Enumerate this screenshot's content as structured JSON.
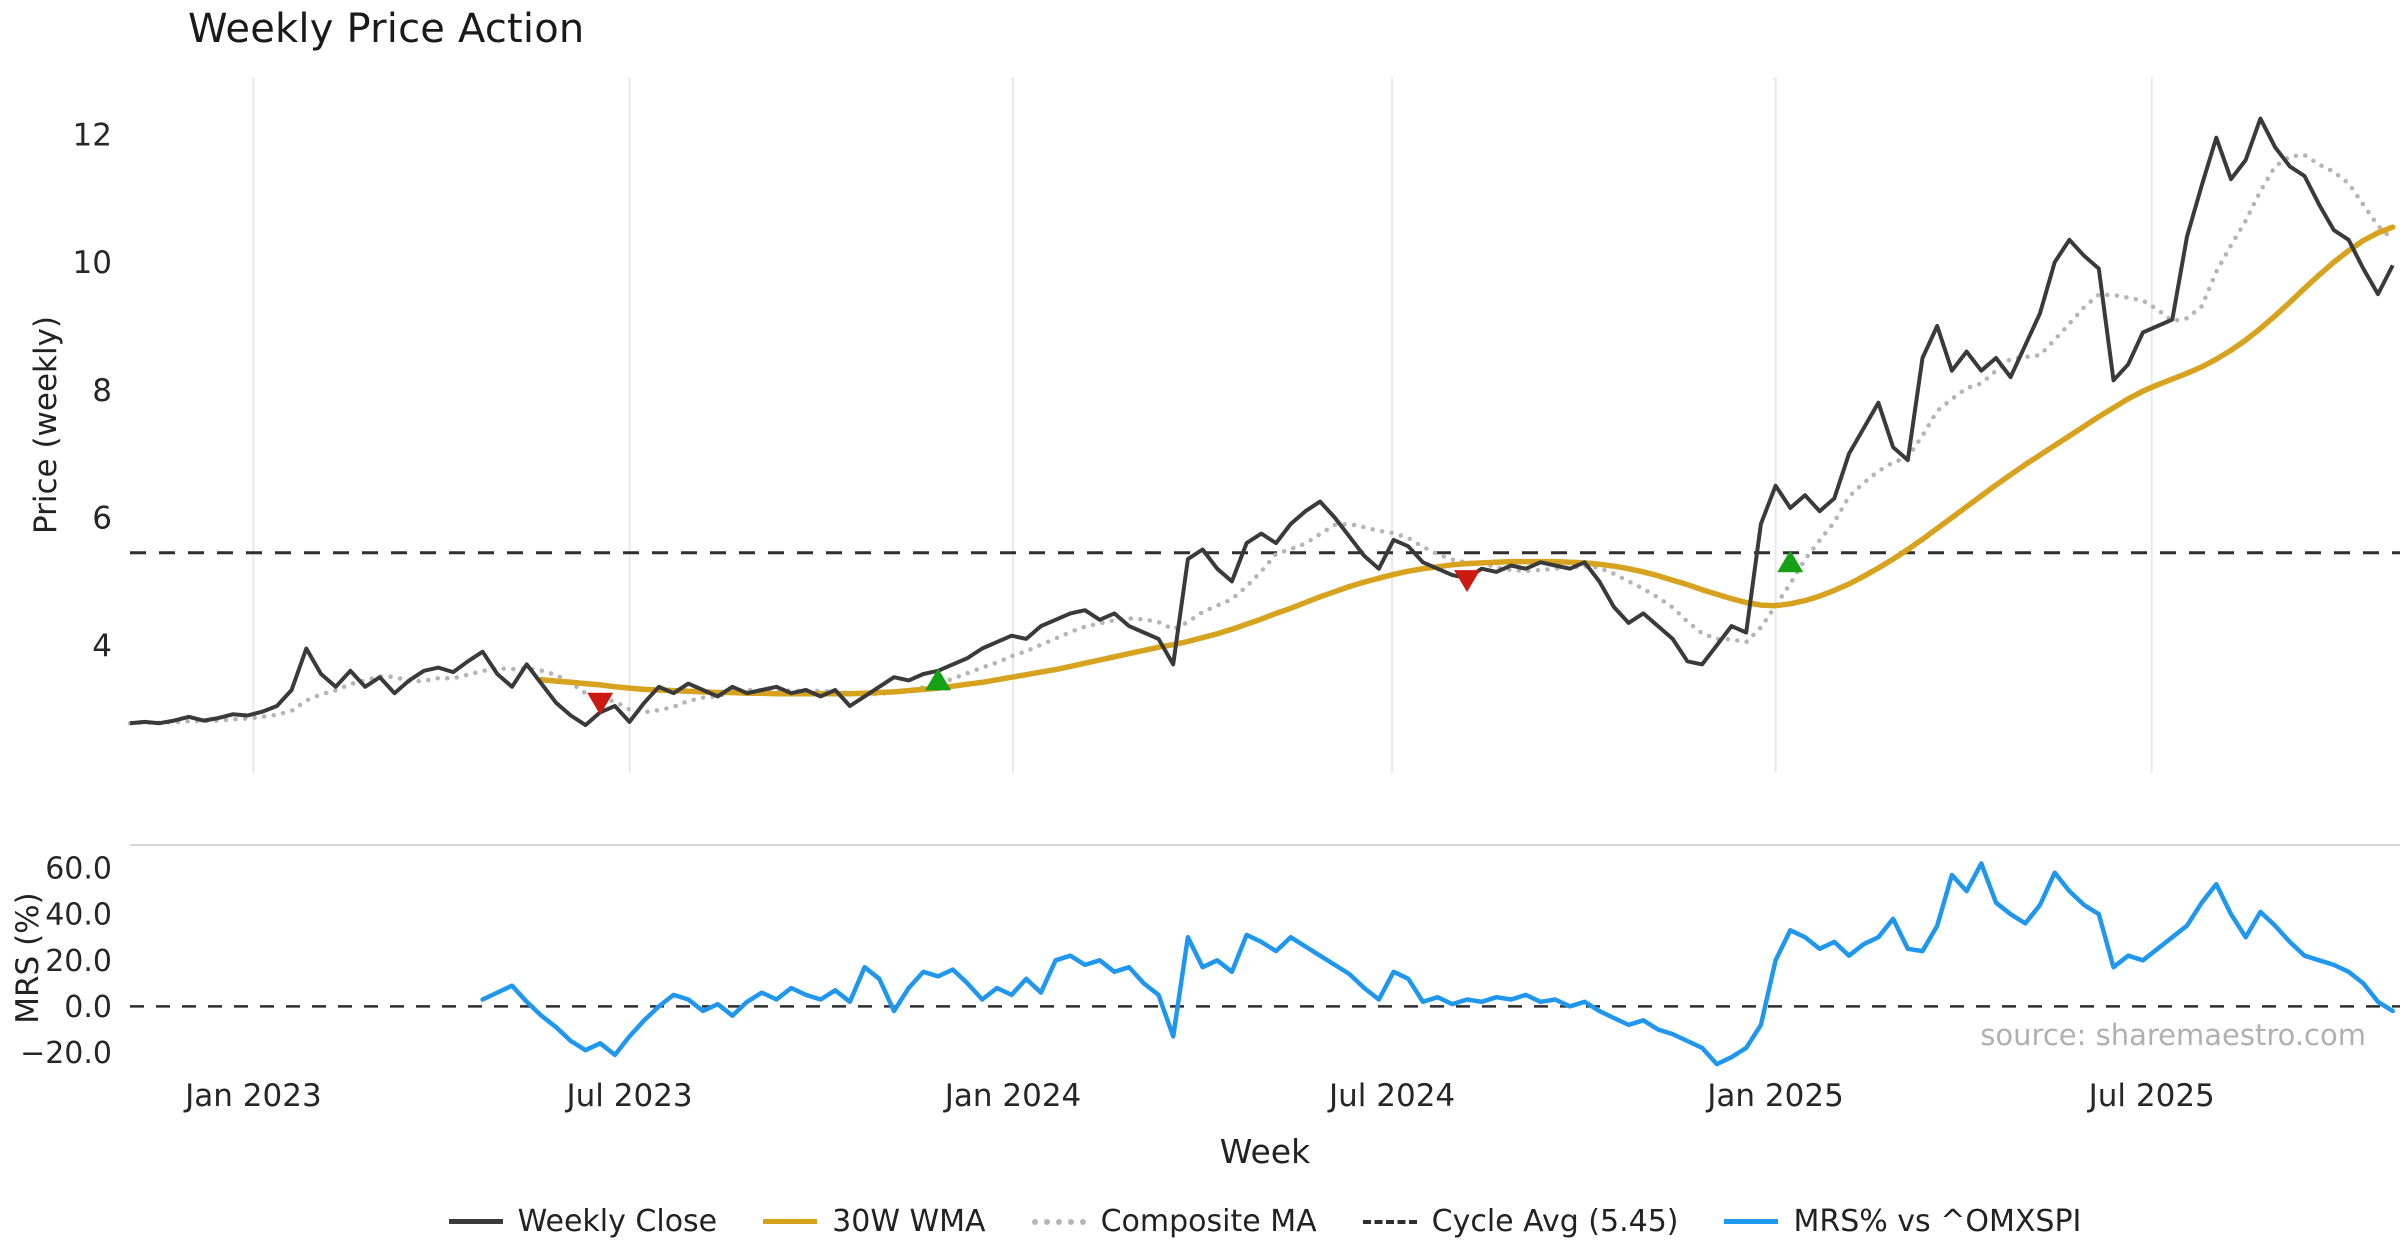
{
  "title": "Weekly Price Action",
  "source": "source: sharemaestro.com",
  "xlabel": "Week",
  "price_axis": {
    "label": "Price (weekly)",
    "ticks": [
      4,
      6,
      8,
      10,
      12
    ]
  },
  "mrs_axis": {
    "label": "MRS (%)",
    "ticks": [
      {
        "value": -20,
        "label": "−20.0"
      },
      {
        "value": 0,
        "label": "0.0"
      },
      {
        "value": 20,
        "label": "20.0"
      },
      {
        "value": 40,
        "label": "40.0"
      },
      {
        "value": 60,
        "label": "60.0"
      }
    ]
  },
  "x_ticks": [
    {
      "week": 8.4,
      "label": "Jan 2023"
    },
    {
      "week": 34.0,
      "label": "Jul 2023"
    },
    {
      "week": 60.1,
      "label": "Jan 2024"
    },
    {
      "week": 85.9,
      "label": "Jul 2024"
    },
    {
      "week": 112.0,
      "label": "Jan 2025"
    },
    {
      "week": 137.6,
      "label": "Jul 2025"
    }
  ],
  "legend": [
    {
      "label": "Weekly Close",
      "color": "#3a3a3a",
      "style": "solid"
    },
    {
      "label": "30W WMA",
      "color": "#d7a21e",
      "style": "solid"
    },
    {
      "label": "Composite MA",
      "color": "#b5b5b5",
      "style": "dotted"
    },
    {
      "label": "Cycle Avg (5.45)",
      "color": "#2f2f2f",
      "style": "dashed"
    },
    {
      "label": "MRS% vs ^OMXSPI",
      "color": "#1f97ee",
      "style": "solid"
    }
  ],
  "colors": {
    "close": "#3a3a3a",
    "wma": "#d7a21e",
    "composite": "#b5b5b5",
    "cycle": "#2f2f2f",
    "mrs": "#1f97ee",
    "sell": "#cb1a10",
    "buy": "#16a016",
    "grid": "#e9e9e9",
    "panel_border": "#d9d9d9",
    "tick": "#262626"
  },
  "chart_data": {
    "type": "line",
    "weeks_total": 155,
    "cycle_avg": 5.45,
    "price_ylim": [
      2.0,
      12.9
    ],
    "mrs_ylim": [
      -28,
      70
    ],
    "series": {
      "close": [
        2.78,
        2.8,
        2.78,
        2.82,
        2.88,
        2.82,
        2.86,
        2.92,
        2.9,
        2.96,
        3.05,
        3.3,
        3.95,
        3.55,
        3.35,
        3.6,
        3.35,
        3.5,
        3.25,
        3.45,
        3.6,
        3.65,
        3.58,
        3.75,
        3.9,
        3.55,
        3.35,
        3.7,
        3.4,
        3.1,
        2.9,
        2.75,
        2.95,
        3.05,
        2.8,
        3.1,
        3.35,
        3.25,
        3.4,
        3.3,
        3.2,
        3.35,
        3.25,
        3.3,
        3.35,
        3.25,
        3.3,
        3.2,
        3.3,
        3.05,
        3.2,
        3.35,
        3.5,
        3.45,
        3.55,
        3.6,
        3.7,
        3.8,
        3.95,
        4.05,
        4.15,
        4.1,
        4.3,
        4.4,
        4.5,
        4.55,
        4.4,
        4.5,
        4.3,
        4.2,
        4.1,
        3.7,
        5.35,
        5.5,
        5.2,
        5.0,
        5.6,
        5.75,
        5.6,
        5.9,
        6.1,
        6.25,
        6.0,
        5.7,
        5.4,
        5.2,
        5.65,
        5.55,
        5.3,
        5.2,
        5.1,
        5.05,
        5.2,
        5.15,
        5.25,
        5.2,
        5.3,
        5.25,
        5.2,
        5.3,
        5.0,
        4.6,
        4.35,
        4.5,
        4.3,
        4.1,
        3.75,
        3.7,
        4.0,
        4.3,
        4.2,
        5.9,
        6.5,
        6.15,
        6.35,
        6.1,
        6.3,
        7.0,
        7.4,
        7.8,
        7.1,
        6.9,
        8.5,
        9.0,
        8.3,
        8.6,
        8.3,
        8.5,
        8.2,
        8.7,
        9.2,
        10.0,
        10.35,
        10.1,
        9.9,
        8.15,
        8.4,
        8.9,
        9.0,
        9.1,
        10.4,
        11.2,
        11.95,
        11.3,
        11.6,
        12.25,
        11.8,
        11.5,
        11.35,
        10.9,
        10.5,
        10.35,
        9.9,
        9.5,
        9.95
      ],
      "wma30": {
        "start_week": 28,
        "values": [
          3.46,
          3.44,
          3.42,
          3.4,
          3.38,
          3.35,
          3.33,
          3.31,
          3.3,
          3.29,
          3.28,
          3.27,
          3.26,
          3.26,
          3.25,
          3.25,
          3.24,
          3.24,
          3.24,
          3.24,
          3.24,
          3.24,
          3.25,
          3.26,
          3.27,
          3.29,
          3.31,
          3.33,
          3.36,
          3.39,
          3.42,
          3.46,
          3.5,
          3.54,
          3.58,
          3.62,
          3.67,
          3.72,
          3.77,
          3.82,
          3.87,
          3.92,
          3.97,
          4.01,
          4.06,
          4.12,
          4.18,
          4.25,
          4.33,
          4.41,
          4.5,
          4.58,
          4.67,
          4.76,
          4.84,
          4.92,
          4.99,
          5.05,
          5.11,
          5.16,
          5.2,
          5.23,
          5.26,
          5.28,
          5.29,
          5.3,
          5.31,
          5.31,
          5.31,
          5.31,
          5.3,
          5.29,
          5.27,
          5.24,
          5.2,
          5.15,
          5.09,
          5.02,
          4.95,
          4.87,
          4.8,
          4.73,
          4.67,
          4.63,
          4.62,
          4.65,
          4.7,
          4.77,
          4.86,
          4.96,
          5.08,
          5.21,
          5.35,
          5.5,
          5.66,
          5.83,
          6.0,
          6.17,
          6.34,
          6.51,
          6.67,
          6.83,
          6.98,
          7.13,
          7.28,
          7.43,
          7.58,
          7.72,
          7.86,
          7.98,
          8.08,
          8.17,
          8.26,
          8.36,
          8.48,
          8.62,
          8.78,
          8.96,
          9.16,
          9.37,
          9.59,
          9.8,
          10.0,
          10.18,
          10.34,
          10.46,
          10.55
        ]
      },
      "composite_ma": {
        "derived_from": "close",
        "window": 7
      },
      "mrs": {
        "start_week": 24,
        "values": [
          3,
          6,
          9,
          2,
          -4,
          -9,
          -15,
          -19,
          -16,
          -21,
          -13,
          -6,
          0,
          5,
          3,
          -2,
          1,
          -4,
          2,
          6,
          3,
          8,
          5,
          3,
          7,
          2,
          17,
          12,
          -2,
          8,
          15,
          13,
          16,
          10,
          3,
          8,
          5,
          12,
          6,
          20,
          22,
          18,
          20,
          15,
          17,
          10,
          5,
          -13,
          30,
          17,
          20,
          15,
          31,
          28,
          24,
          30,
          26,
          22,
          18,
          14,
          8,
          3,
          15,
          12,
          2,
          4,
          1,
          3,
          2,
          4,
          3,
          5,
          2,
          3,
          0,
          2,
          -2,
          -5,
          -8,
          -6,
          -10,
          -12,
          -15,
          -18,
          -25,
          -22,
          -18,
          -8,
          20,
          33,
          30,
          25,
          28,
          22,
          27,
          30,
          38,
          25,
          24,
          35,
          57,
          50,
          62,
          45,
          40,
          36,
          44,
          58,
          50,
          44,
          40,
          17,
          22,
          20,
          25,
          30,
          35,
          45,
          53,
          40,
          30,
          41,
          35,
          28,
          22,
          20,
          18,
          15,
          10,
          2,
          -2
        ]
      }
    },
    "markers": {
      "sell": [
        {
          "week": 32,
          "price": 3.1
        },
        {
          "week": 91,
          "price": 5.02
        }
      ],
      "buy": [
        {
          "week": 55,
          "price": 3.45
        },
        {
          "week": 113,
          "price": 5.3
        }
      ]
    }
  }
}
